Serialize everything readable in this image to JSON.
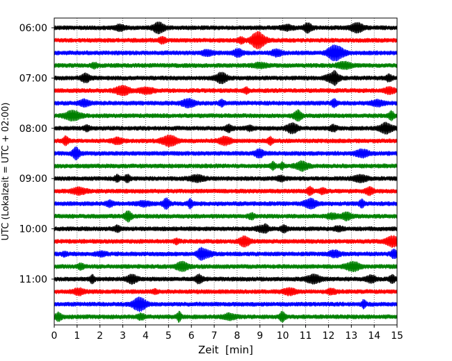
{
  "chart_data": {
    "type": "line",
    "title": "",
    "xlabel": "Zeit  [min]",
    "ylabel": "UTC (Lokalzeit = UTC + 02:00)",
    "xlim": [
      0,
      15
    ],
    "x_ticks": [
      0,
      1,
      2,
      3,
      4,
      5,
      6,
      7,
      8,
      9,
      10,
      11,
      12,
      13,
      14,
      15
    ],
    "y_tick_labels": [
      "06:00",
      "07:00",
      "08:00",
      "09:00",
      "10:00",
      "11:00"
    ],
    "grid": "vertical dotted lines at each minute",
    "trace_interval_min": 15,
    "trace_color_cycle": [
      "#000000",
      "#ff0000",
      "#0000ff",
      "#008000"
    ],
    "traces": [
      {
        "start": "06:00",
        "color": "#000000"
      },
      {
        "start": "06:15",
        "color": "#ff0000"
      },
      {
        "start": "06:30",
        "color": "#0000ff"
      },
      {
        "start": "06:45",
        "color": "#008000"
      },
      {
        "start": "07:00",
        "color": "#000000"
      },
      {
        "start": "07:15",
        "color": "#ff0000"
      },
      {
        "start": "07:30",
        "color": "#0000ff"
      },
      {
        "start": "07:45",
        "color": "#008000"
      },
      {
        "start": "08:00",
        "color": "#000000"
      },
      {
        "start": "08:15",
        "color": "#ff0000"
      },
      {
        "start": "08:30",
        "color": "#0000ff"
      },
      {
        "start": "08:45",
        "color": "#008000"
      },
      {
        "start": "09:00",
        "color": "#000000"
      },
      {
        "start": "09:15",
        "color": "#ff0000"
      },
      {
        "start": "09:30",
        "color": "#0000ff"
      },
      {
        "start": "09:45",
        "color": "#008000"
      },
      {
        "start": "10:00",
        "color": "#000000"
      },
      {
        "start": "10:15",
        "color": "#ff0000"
      },
      {
        "start": "10:30",
        "color": "#0000ff"
      },
      {
        "start": "10:45",
        "color": "#008000"
      },
      {
        "start": "11:00",
        "color": "#000000"
      },
      {
        "start": "11:15",
        "color": "#ff0000"
      },
      {
        "start": "11:30",
        "color": "#0000ff"
      },
      {
        "start": "11:45",
        "color": "#008000"
      }
    ]
  }
}
